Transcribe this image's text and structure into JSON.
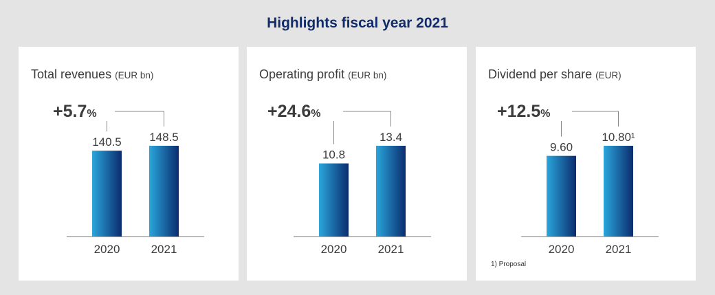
{
  "title": "Highlights fiscal year 2021",
  "colors": {
    "background": "#e4e4e4",
    "title": "#122b6b",
    "bar_light": "#2aa6db",
    "bar_dark": "#0b2c6e",
    "text": "#3c3c3c"
  },
  "panels": [
    {
      "title": "Total revenues",
      "unit": "(EUR bn)",
      "growth": "+5.7",
      "growth_unit": "%"
    },
    {
      "title": "Operating profit",
      "unit": "(EUR bn)",
      "growth": "+24.6",
      "growth_unit": "%"
    },
    {
      "title": "Dividend per share",
      "unit": "(EUR)",
      "growth": "+12.5",
      "growth_unit": "%",
      "footnote": "1)  Proposal"
    }
  ],
  "chart_data": [
    {
      "type": "bar",
      "title": "Total revenues (EUR bn)",
      "categories": [
        "2020",
        "2021"
      ],
      "values": [
        140.5,
        148.5
      ],
      "labels": [
        "140.5",
        "148.5"
      ],
      "annotation": "+5.7%"
    },
    {
      "type": "bar",
      "title": "Operating profit (EUR bn)",
      "categories": [
        "2020",
        "2021"
      ],
      "values": [
        10.8,
        13.4
      ],
      "labels": [
        "10.8",
        "13.4"
      ],
      "annotation": "+24.6%"
    },
    {
      "type": "bar",
      "title": "Dividend per share (EUR)",
      "categories": [
        "2020",
        "2021"
      ],
      "values": [
        9.6,
        10.8
      ],
      "labels": [
        "9.60",
        "10.80¹"
      ],
      "annotation": "+12.5%"
    }
  ]
}
